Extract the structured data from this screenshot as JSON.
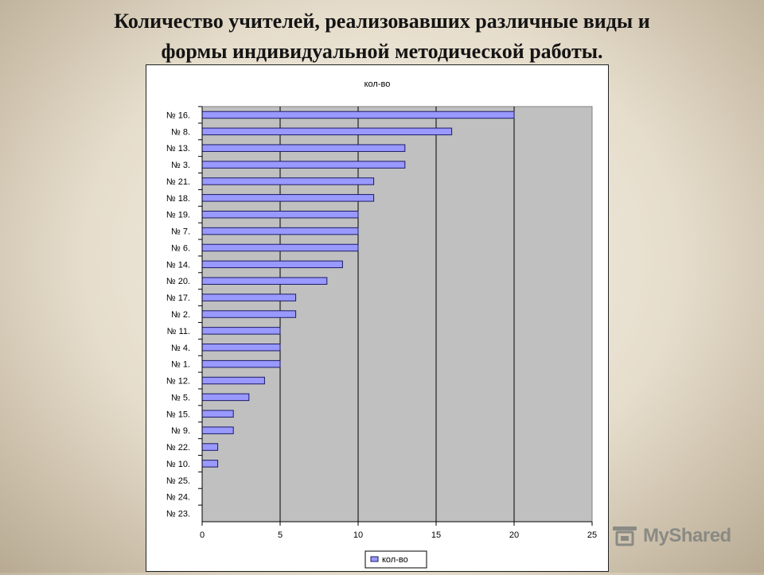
{
  "slide": {
    "title_line1": "Количество учителей, реализовавших  различные виды и",
    "title_line2": "формы индивидуальной  методической работы."
  },
  "watermark": {
    "text": "MyShared",
    "icon": "podium-icon"
  },
  "chart_data": {
    "type": "bar",
    "orientation": "horizontal",
    "title": "кол-во",
    "categories": [
      "№ 16.",
      "№ 8.",
      "№ 13.",
      "№ 3.",
      "№ 21.",
      "№ 18.",
      "№ 19.",
      "№ 7.",
      "№ 6.",
      "№ 14.",
      "№ 20.",
      "№ 17.",
      "№  2.",
      "№ 11.",
      "№ 4.",
      "№ 1.",
      "№ 12.",
      "№ 5.",
      "№ 15.",
      "№ 9.",
      "№ 22.",
      "№ 10.",
      "№ 25.",
      "№ 24.",
      "№ 23."
    ],
    "series": [
      {
        "name": "кол-во",
        "values": [
          20,
          16,
          13,
          13,
          11,
          11,
          10,
          10,
          10,
          9,
          8,
          6,
          6,
          5,
          5,
          5,
          4,
          3,
          2,
          2,
          1,
          1,
          0,
          0,
          0
        ]
      }
    ],
    "xlim": [
      0,
      25
    ],
    "xticks": [
      0,
      5,
      10,
      15,
      20,
      25
    ],
    "grid": "vertical",
    "legend": "bottom",
    "colors": {
      "bar": "#9999ff",
      "bar_edge": "#1a1a66",
      "plot_bg": "#c0c0c0"
    }
  }
}
